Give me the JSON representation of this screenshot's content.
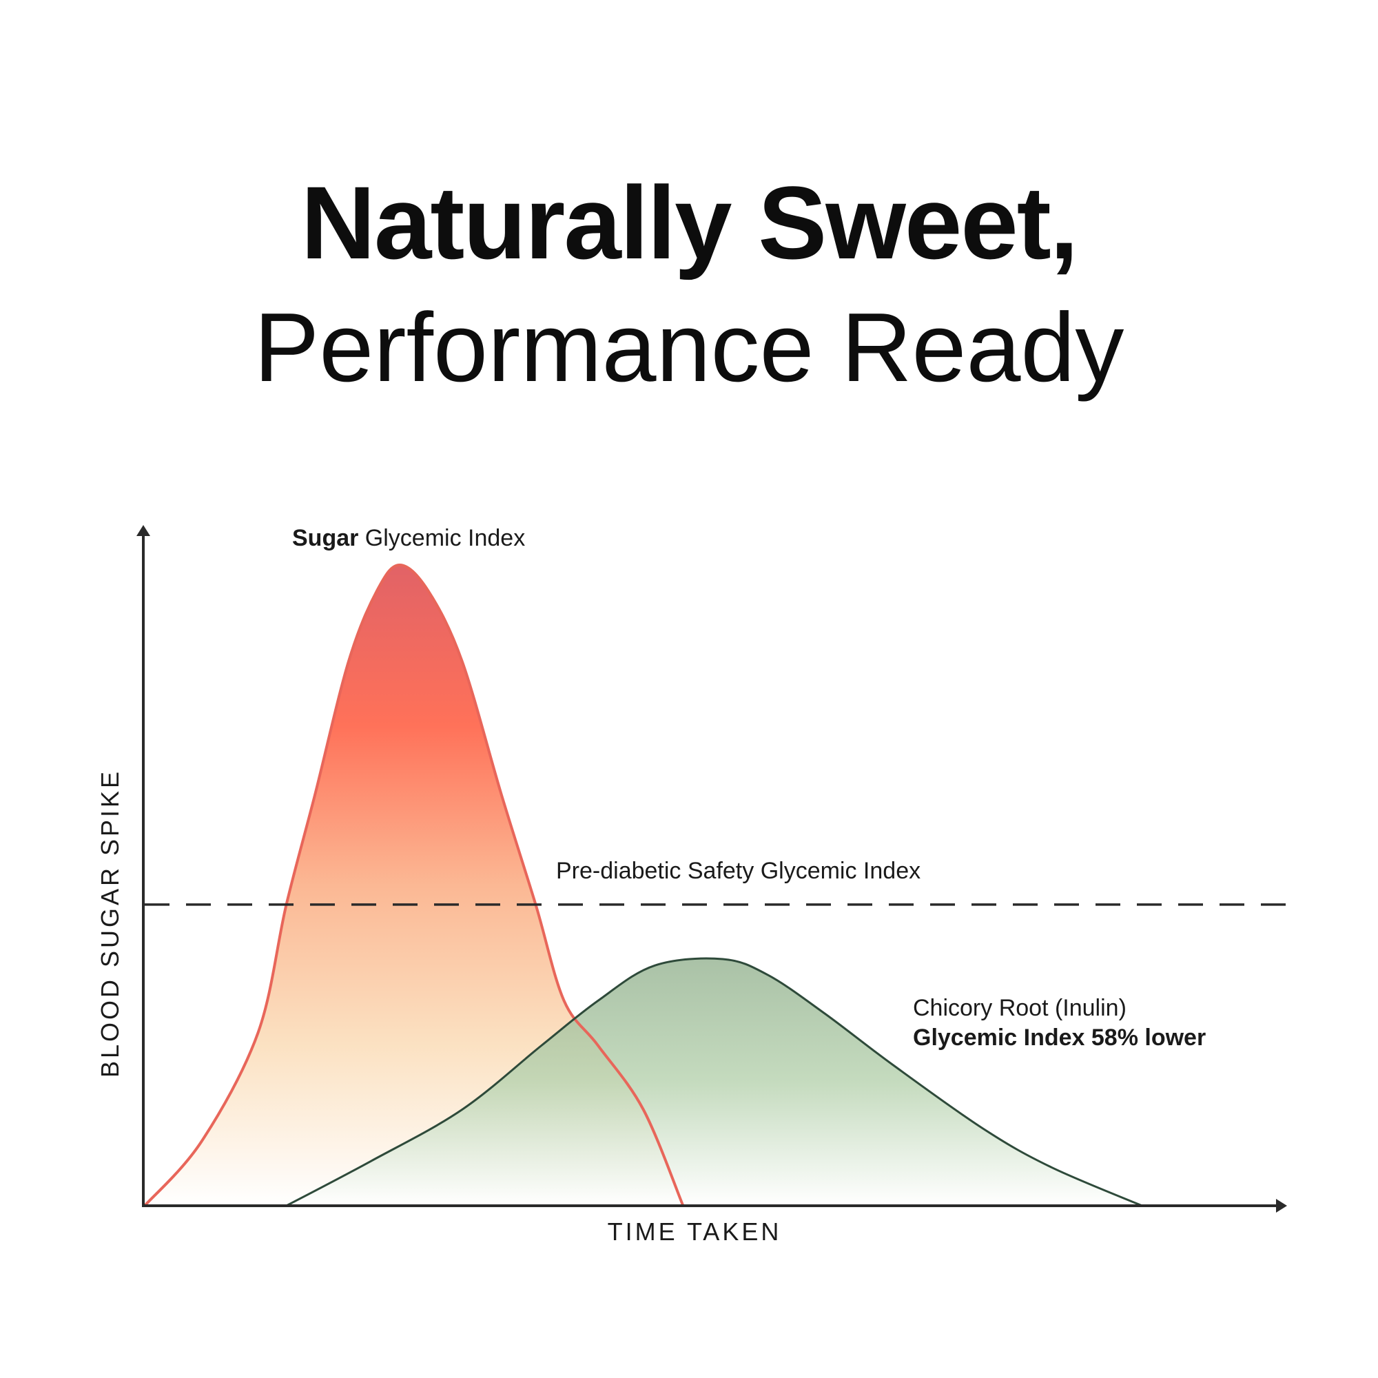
{
  "title": {
    "line1": "Naturally Sweet,",
    "line2": "Performance Ready"
  },
  "chart_data": {
    "type": "area",
    "xlabel": "TIME TAKEN",
    "ylabel": "BLOOD SUGAR SPIKE",
    "xlim": [
      0,
      100
    ],
    "ylim": [
      0,
      100
    ],
    "grid": false,
    "threshold": {
      "label": "Pre-diabetic Safety Glycemic Index",
      "value": 47
    },
    "series": [
      {
        "name": "Sugar Glycemic Index",
        "label_bold": "Sugar",
        "label_rest": " Glycemic Index",
        "color": "#e8665a",
        "gradient": [
          "#e05a5e",
          "#ff6a50",
          "#fbb48e",
          "#fbe0bf",
          "#ffffff"
        ],
        "points": [
          [
            0,
            0
          ],
          [
            5,
            10
          ],
          [
            10,
            27
          ],
          [
            12.5,
            47
          ],
          [
            15,
            64
          ],
          [
            18,
            85
          ],
          [
            20.5,
            96
          ],
          [
            22.5,
            100
          ],
          [
            25,
            96
          ],
          [
            28,
            85
          ],
          [
            31.5,
            64
          ],
          [
            34.5,
            47
          ],
          [
            37,
            32
          ],
          [
            40,
            25
          ],
          [
            44,
            15
          ],
          [
            47.5,
            0
          ]
        ]
      },
      {
        "name": "Chicory Root (Inulin) Glycemic Index 58% lower",
        "label_line1": "Chicory Root (Inulin)",
        "label_line2": "Glycemic Index 58% lower",
        "color": "#2e4a3a",
        "gradient": [
          "#97b493",
          "#b8d3b0",
          "#ffffff"
        ],
        "points": [
          [
            12.5,
            0
          ],
          [
            20,
            7
          ],
          [
            28,
            15
          ],
          [
            35,
            25
          ],
          [
            40,
            32
          ],
          [
            45,
            37.5
          ],
          [
            51,
            38.5
          ],
          [
            55,
            36
          ],
          [
            60,
            30
          ],
          [
            66,
            22
          ],
          [
            74,
            12
          ],
          [
            80,
            6
          ],
          [
            88,
            0
          ]
        ]
      }
    ]
  }
}
